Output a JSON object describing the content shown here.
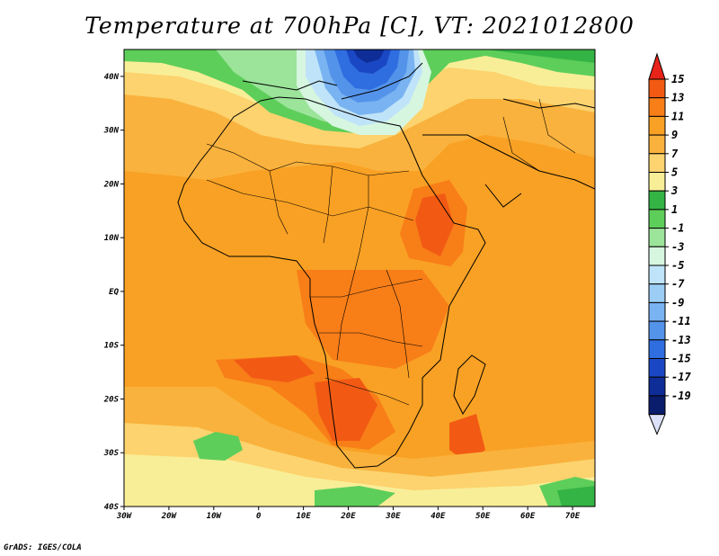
{
  "title": "Temperature at 700hPa [C], VT: 2021012800",
  "credit": "GrADS: IGES/COLA",
  "map": {
    "lon_range": [
      -30,
      75
    ],
    "lat_range": [
      -40,
      45
    ],
    "lat_labels": [
      {
        "lat": 40,
        "text": "40N"
      },
      {
        "lat": 30,
        "text": "30N"
      },
      {
        "lat": 20,
        "text": "20N"
      },
      {
        "lat": 10,
        "text": "10N"
      },
      {
        "lat": 0,
        "text": "EQ"
      },
      {
        "lat": -10,
        "text": "10S"
      },
      {
        "lat": -20,
        "text": "20S"
      },
      {
        "lat": -30,
        "text": "30S"
      },
      {
        "lat": -40,
        "text": "40S"
      }
    ],
    "lon_labels": [
      {
        "lon": -30,
        "text": "30W"
      },
      {
        "lon": -20,
        "text": "20W"
      },
      {
        "lon": -10,
        "text": "10W"
      },
      {
        "lon": 0,
        "text": "0"
      },
      {
        "lon": 10,
        "text": "10E"
      },
      {
        "lon": 20,
        "text": "20E"
      },
      {
        "lon": 30,
        "text": "30E"
      },
      {
        "lon": 40,
        "text": "40E"
      },
      {
        "lon": 50,
        "text": "50E"
      },
      {
        "lon": 60,
        "text": "60E"
      },
      {
        "lon": 70,
        "text": "70E"
      }
    ]
  },
  "colorbar": {
    "labels": [
      "15",
      "13",
      "11",
      "9",
      "7",
      "5",
      "3",
      "1",
      "-1",
      "-3",
      "-5",
      "-7",
      "-9",
      "-11",
      "-13",
      "-15",
      "-17",
      "-19"
    ],
    "colors": [
      "#e8241a",
      "#f25a14",
      "#f87e18",
      "#f9a124",
      "#f9b23d",
      "#fcd36e",
      "#f9ee98",
      "#34b444",
      "#5ece5a",
      "#9be49a",
      "#d6f6e0",
      "#bfe3f8",
      "#9ccdf5",
      "#79b3f1",
      "#5493ea",
      "#2f6ee0",
      "#1a48c5",
      "#0e2d96",
      "#0a1c6c",
      "#dce0f8"
    ]
  }
}
